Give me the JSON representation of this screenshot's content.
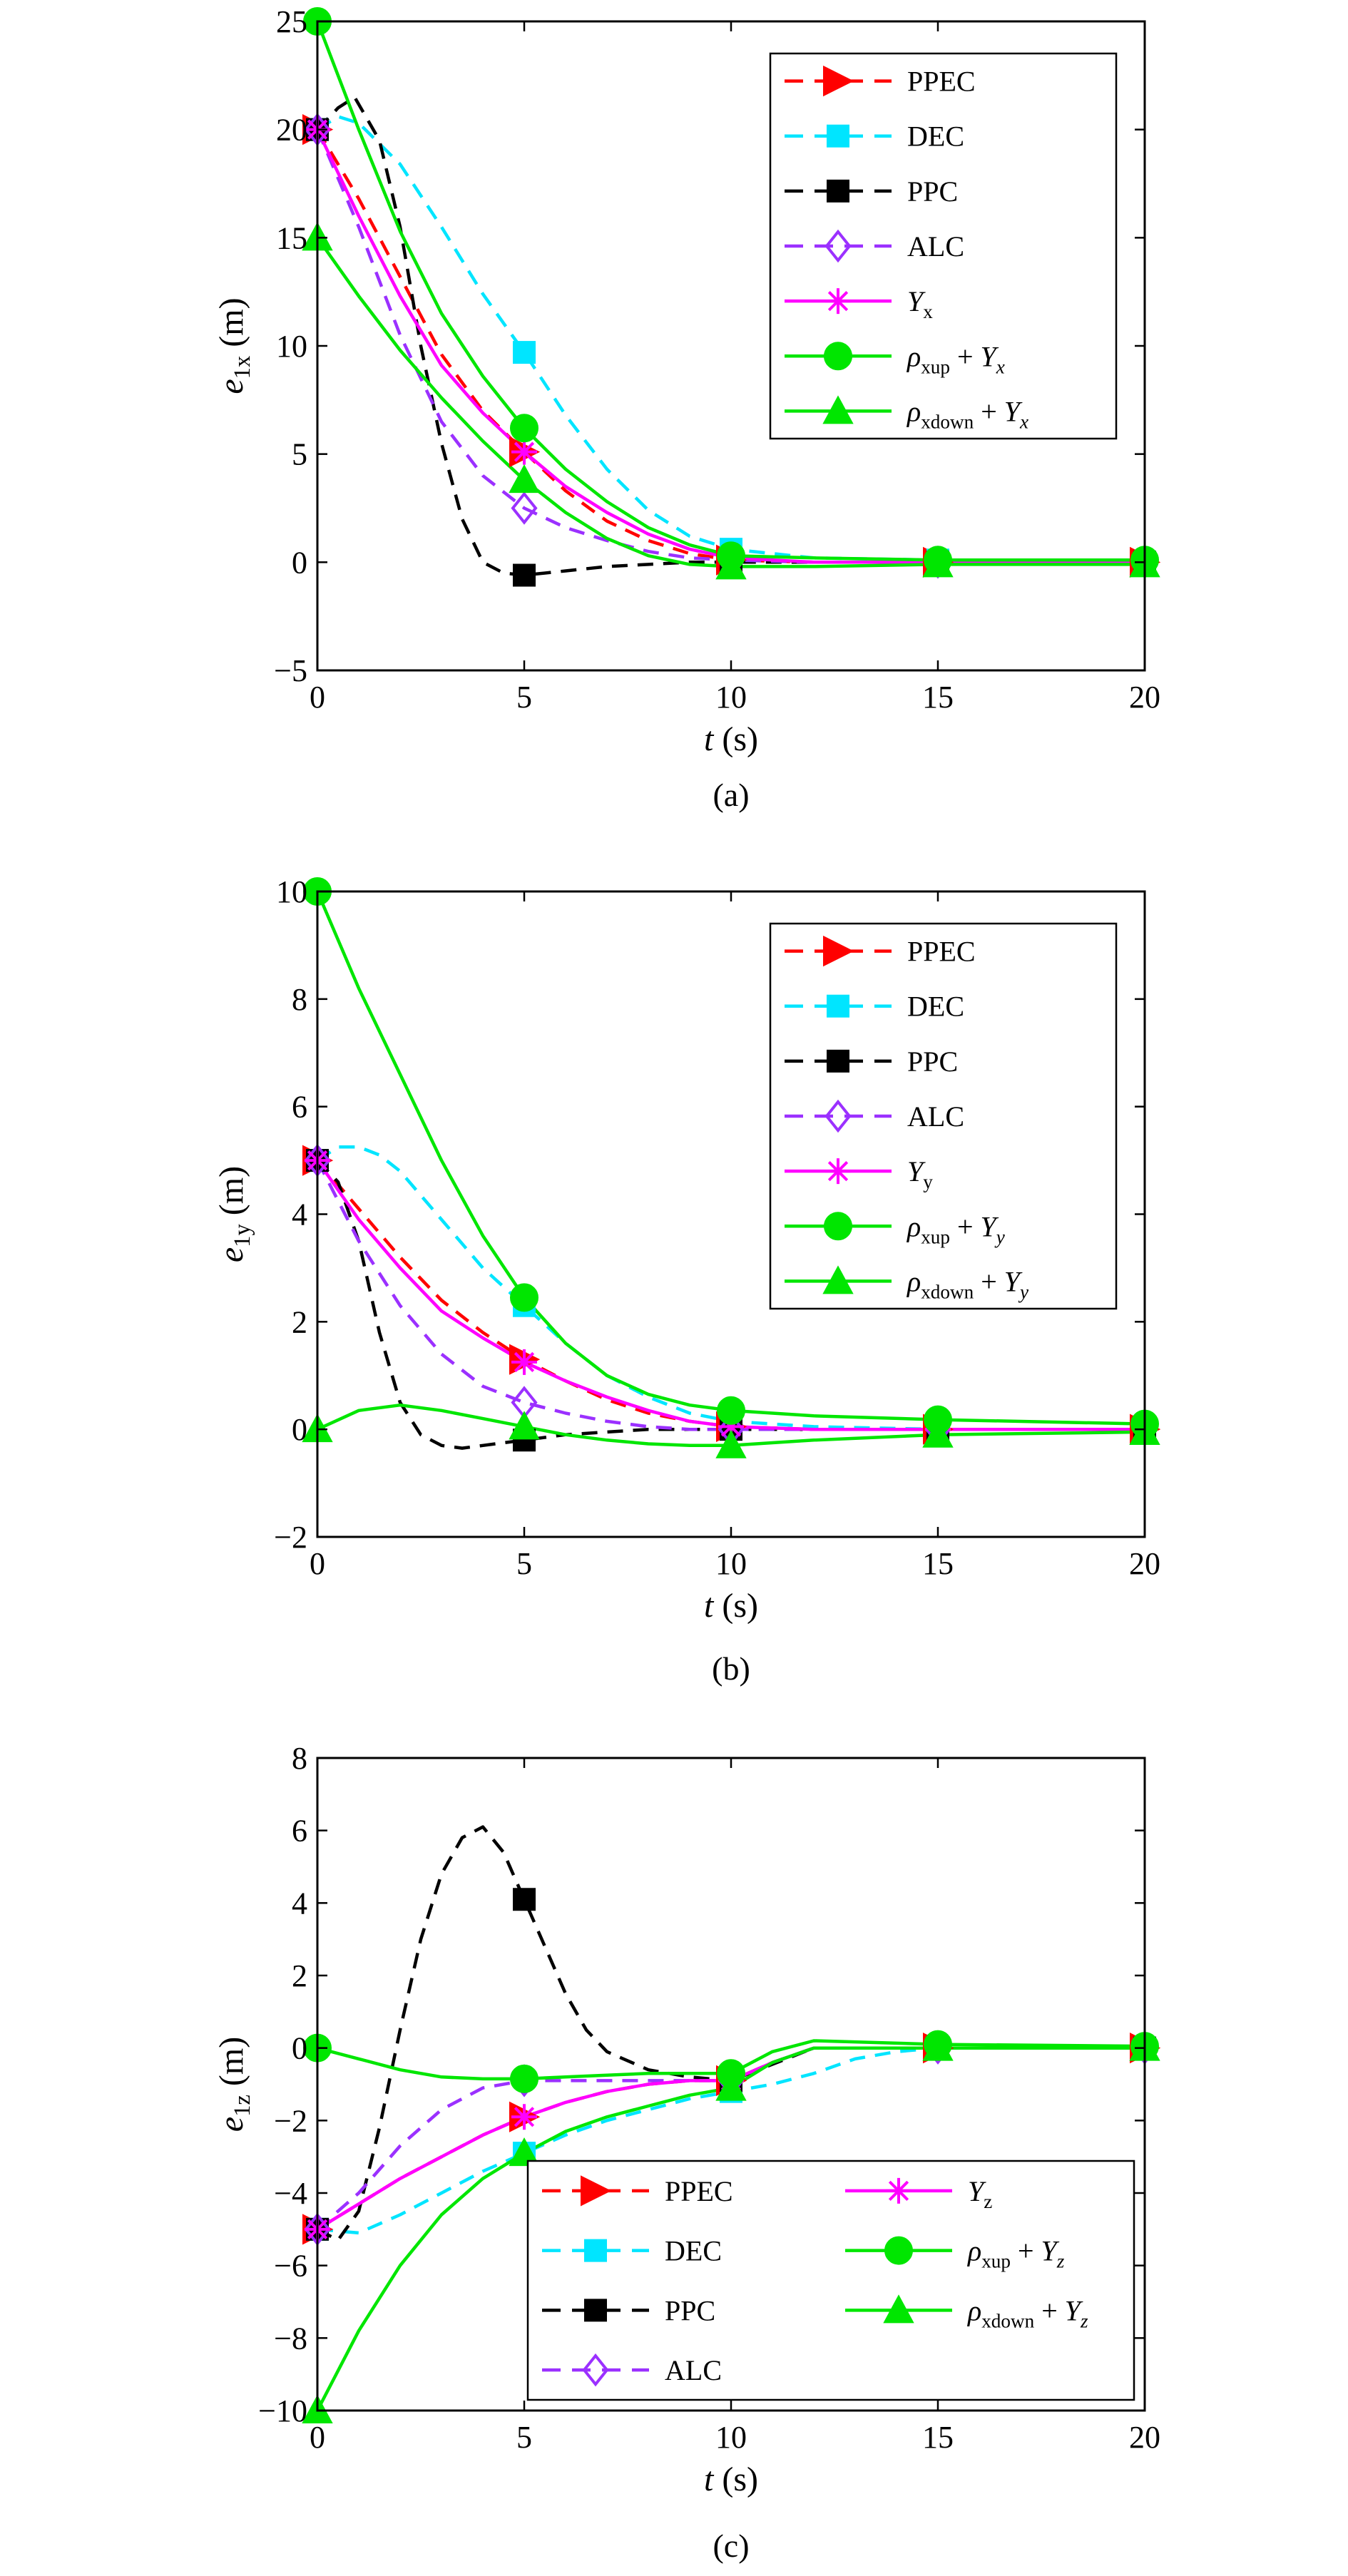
{
  "chart_data": [
    {
      "type": "line",
      "caption": "(a)",
      "xlabel": "t (s)",
      "ylabel": "e1x (m)",
      "ylabel_main": "e",
      "ylabel_sub": "1x",
      "ylabel_unit": " (m)",
      "xlim": [
        0,
        20
      ],
      "ylim": [
        -5,
        25
      ],
      "xticks": [
        0,
        5,
        10,
        15,
        20
      ],
      "yticks": [
        -5,
        0,
        5,
        10,
        15,
        20,
        25
      ],
      "grid": false,
      "legend_position": "top-right",
      "series": [
        {
          "name": "PPEC",
          "color": "#ff0000",
          "dash": "dashed",
          "marker": "triangle-right",
          "x": [
            0,
            1,
            2,
            3,
            4,
            5,
            6,
            7,
            8,
            9,
            10,
            12,
            15,
            20
          ],
          "y": [
            20,
            16.8,
            13.2,
            9.6,
            7,
            5.1,
            3.3,
            1.9,
            1,
            0.4,
            0.1,
            0,
            0,
            0
          ]
        },
        {
          "name": "DEC",
          "color": "#00e5ff",
          "dash": "dashed",
          "marker": "square",
          "x": [
            0,
            0.5,
            1,
            2,
            3,
            4,
            5,
            6,
            7,
            8,
            9,
            10,
            12,
            15,
            20
          ],
          "y": [
            20,
            20.6,
            20.3,
            18.4,
            15.5,
            12.4,
            9.7,
            6.8,
            4.3,
            2.4,
            1.2,
            0.6,
            0.2,
            0.1,
            0
          ]
        },
        {
          "name": "PPC",
          "color": "#000000",
          "dash": "dashed",
          "marker": "square",
          "x": [
            0,
            0.5,
            0.9,
            1.5,
            2,
            2.5,
            3,
            3.5,
            4,
            4.5,
            5,
            6,
            7,
            8,
            9,
            10,
            15,
            20
          ],
          "y": [
            20,
            21,
            21.5,
            19.5,
            15.5,
            10,
            5.5,
            2,
            0,
            -0.5,
            -0.6,
            -0.4,
            -0.2,
            -0.1,
            0,
            0,
            0,
            0
          ]
        },
        {
          "name": "ALC",
          "color": "#9b30ff",
          "dash": "dashed",
          "marker": "diamond",
          "x": [
            0,
            1,
            2,
            3,
            4,
            5,
            6,
            7,
            8,
            9,
            10,
            12,
            15,
            20
          ],
          "y": [
            20,
            15.5,
            10.5,
            6.5,
            4,
            2.5,
            1.6,
            1,
            0.5,
            0.2,
            0.1,
            0,
            0,
            0
          ]
        },
        {
          "name": "Yx",
          "label_main": "Y",
          "label_sub": "x",
          "color": "#ff00ff",
          "dash": "solid",
          "marker": "asterisk",
          "x": [
            0,
            1,
            2,
            3,
            4,
            5,
            6,
            7,
            8,
            9,
            10,
            12,
            15,
            20
          ],
          "y": [
            20,
            16,
            12.3,
            9.1,
            6.9,
            5.1,
            3.5,
            2.3,
            1.3,
            0.6,
            0.2,
            0,
            0,
            0
          ]
        },
        {
          "name": "ρxup + Yx",
          "label_main": "ρ",
          "label_sub": "xup",
          "label_tail": " + Y",
          "label_tail_sub": "x",
          "color": "#00e600",
          "dash": "solid",
          "marker": "circle",
          "x": [
            0,
            1,
            2,
            3,
            4,
            5,
            6,
            7,
            8,
            9,
            10,
            12,
            15,
            20
          ],
          "y": [
            25,
            20,
            15.3,
            11.5,
            8.6,
            6.2,
            4.3,
            2.8,
            1.6,
            0.8,
            0.3,
            0.2,
            0.1,
            0.1
          ]
        },
        {
          "name": "ρxdown + Yx",
          "label_main": "ρ",
          "label_sub": "xdown",
          "label_tail": " + Y",
          "label_tail_sub": "x",
          "color": "#00e600",
          "dash": "solid",
          "marker": "triangle-up",
          "x": [
            0,
            1,
            2,
            3,
            4,
            5,
            6,
            7,
            8,
            9,
            10,
            12,
            15,
            20
          ],
          "y": [
            15,
            12.3,
            9.8,
            7.6,
            5.6,
            3.8,
            2.3,
            1.1,
            0.3,
            -0.1,
            -0.2,
            -0.2,
            -0.1,
            -0.1
          ]
        }
      ],
      "markers_at_x": [
        0,
        5,
        10,
        15,
        20
      ]
    },
    {
      "type": "line",
      "caption": "(b)",
      "xlabel": "t (s)",
      "ylabel": "e1y (m)",
      "ylabel_main": "e",
      "ylabel_sub": "1y",
      "ylabel_unit": " (m)",
      "xlim": [
        0,
        20
      ],
      "ylim": [
        -2,
        10
      ],
      "xticks": [
        0,
        5,
        10,
        15,
        20
      ],
      "yticks": [
        -2,
        0,
        2,
        4,
        6,
        8,
        10
      ],
      "grid": false,
      "legend_position": "top-right",
      "series": [
        {
          "name": "PPEC",
          "color": "#ff0000",
          "dash": "dashed",
          "marker": "triangle-right",
          "x": [
            0,
            1,
            2,
            3,
            4,
            5,
            6,
            7,
            8,
            9,
            10,
            12,
            15,
            20
          ],
          "y": [
            5,
            4.1,
            3.2,
            2.4,
            1.8,
            1.3,
            0.9,
            0.55,
            0.3,
            0.15,
            0.05,
            0,
            0,
            0
          ]
        },
        {
          "name": "DEC",
          "color": "#00e5ff",
          "dash": "dashed",
          "marker": "square",
          "x": [
            0,
            0.5,
            1,
            1.5,
            2,
            3,
            4,
            5,
            6,
            7,
            8,
            9,
            10,
            12,
            15,
            20
          ],
          "y": [
            5,
            5.25,
            5.25,
            5.1,
            4.8,
            3.9,
            3.0,
            2.3,
            1.6,
            1.0,
            0.6,
            0.3,
            0.15,
            0.05,
            0,
            0
          ]
        },
        {
          "name": "PPC",
          "color": "#000000",
          "dash": "dashed",
          "marker": "square",
          "x": [
            0,
            0.5,
            1,
            1.5,
            2,
            2.5,
            3,
            3.5,
            4,
            5,
            6,
            7,
            8,
            10,
            15,
            20
          ],
          "y": [
            5,
            4.6,
            3.5,
            1.8,
            0.5,
            -0.1,
            -0.3,
            -0.35,
            -0.3,
            -0.2,
            -0.1,
            -0.05,
            0,
            0,
            0,
            0
          ]
        },
        {
          "name": "ALC",
          "color": "#9b30ff",
          "dash": "dashed",
          "marker": "diamond",
          "x": [
            0,
            1,
            2,
            3,
            4,
            5,
            6,
            7,
            8,
            9,
            10,
            12,
            15,
            20
          ],
          "y": [
            5,
            3.5,
            2.3,
            1.4,
            0.8,
            0.5,
            0.3,
            0.15,
            0.05,
            0,
            0,
            0,
            0,
            0
          ]
        },
        {
          "name": "Yy",
          "label_main": "Y",
          "label_sub": "y",
          "color": "#ff00ff",
          "dash": "solid",
          "marker": "asterisk",
          "x": [
            0,
            1,
            2,
            3,
            4,
            5,
            6,
            7,
            8,
            9,
            10,
            12,
            15,
            20
          ],
          "y": [
            5,
            3.9,
            3.0,
            2.2,
            1.7,
            1.25,
            0.9,
            0.6,
            0.35,
            0.15,
            0.05,
            0,
            0,
            0
          ]
        },
        {
          "name": "ρxup + Yy",
          "label_main": "ρ",
          "label_sub": "xup",
          "label_tail": " + Y",
          "label_tail_sub": "y",
          "color": "#00e600",
          "dash": "solid",
          "marker": "circle",
          "x": [
            0,
            1,
            2,
            3,
            4,
            5,
            6,
            7,
            8,
            9,
            10,
            12,
            15,
            20
          ],
          "y": [
            10,
            8.2,
            6.6,
            5.0,
            3.6,
            2.45,
            1.6,
            1.0,
            0.65,
            0.45,
            0.35,
            0.25,
            0.18,
            0.1
          ]
        },
        {
          "name": "ρxdown + Yy",
          "label_main": "ρ",
          "label_sub": "xdown",
          "label_tail": " + Y",
          "label_tail_sub": "y",
          "color": "#00e600",
          "dash": "solid",
          "marker": "triangle-up",
          "x": [
            0,
            1,
            2,
            3,
            4,
            5,
            6,
            7,
            8,
            9,
            10,
            12,
            15,
            20
          ],
          "y": [
            0,
            0.35,
            0.45,
            0.35,
            0.2,
            0.05,
            -0.1,
            -0.2,
            -0.27,
            -0.3,
            -0.3,
            -0.2,
            -0.1,
            -0.05
          ]
        }
      ],
      "markers_at_x": [
        0,
        5,
        10,
        15,
        20
      ]
    },
    {
      "type": "line",
      "caption": "(c)",
      "xlabel": "t (s)",
      "ylabel": "e1z (m)",
      "ylabel_main": "e",
      "ylabel_sub": "1z",
      "ylabel_unit": " (m)",
      "xlim": [
        0,
        20
      ],
      "ylim": [
        -10,
        8
      ],
      "xticks": [
        0,
        5,
        10,
        15,
        20
      ],
      "yticks": [
        -10,
        -8,
        -6,
        -4,
        -2,
        0,
        2,
        4,
        6,
        8
      ],
      "grid": false,
      "legend_position": "bottom-right",
      "series": [
        {
          "name": "PPEC",
          "color": "#ff0000",
          "dash": "dashed",
          "marker": "triangle-right",
          "x": [
            0,
            1,
            2,
            3,
            4,
            5,
            6,
            7,
            8,
            9,
            10,
            11,
            12,
            15,
            20
          ],
          "y": [
            -5,
            -4.3,
            -3.6,
            -3,
            -2.4,
            -1.9,
            -1.5,
            -1.2,
            -1,
            -0.9,
            -0.9,
            -0.4,
            0,
            0,
            0
          ]
        },
        {
          "name": "DEC",
          "color": "#00e5ff",
          "dash": "dashed",
          "marker": "square",
          "x": [
            0,
            1,
            2,
            3,
            4,
            5,
            6,
            7,
            8,
            9,
            10,
            11,
            12,
            13,
            14,
            15,
            20
          ],
          "y": [
            -5,
            -5.1,
            -4.6,
            -4,
            -3.4,
            -2.9,
            -2.4,
            -2,
            -1.7,
            -1.4,
            -1.2,
            -1,
            -0.7,
            -0.3,
            -0.1,
            0,
            0
          ]
        },
        {
          "name": "PPC",
          "color": "#000000",
          "dash": "dashed",
          "marker": "square",
          "x": [
            0,
            0.5,
            1,
            1.5,
            2,
            2.5,
            3,
            3.5,
            4,
            4.5,
            5,
            5.5,
            6,
            6.5,
            7,
            8,
            9,
            10,
            12,
            15,
            20
          ],
          "y": [
            -5,
            -5.3,
            -4.5,
            -2.2,
            0.5,
            3,
            4.8,
            5.8,
            6.1,
            5.4,
            4.1,
            2.8,
            1.5,
            0.5,
            -0.1,
            -0.6,
            -0.8,
            -0.9,
            0,
            0,
            0
          ]
        },
        {
          "name": "ALC",
          "color": "#9b30ff",
          "dash": "dashed",
          "marker": "diamond",
          "x": [
            0,
            1,
            2,
            3,
            4,
            5,
            6,
            7,
            8,
            9,
            10,
            11,
            12,
            15,
            20
          ],
          "y": [
            -5,
            -4,
            -2.7,
            -1.7,
            -1.1,
            -0.9,
            -0.9,
            -0.9,
            -0.9,
            -0.9,
            -0.9,
            -0.4,
            0,
            0,
            0
          ]
        },
        {
          "name": "Yz",
          "label_main": "Y",
          "label_sub": "z",
          "color": "#ff00ff",
          "dash": "solid",
          "marker": "asterisk",
          "x": [
            0,
            1,
            2,
            3,
            4,
            5,
            6,
            7,
            8,
            9,
            10,
            11,
            12,
            15,
            20
          ],
          "y": [
            -5,
            -4.3,
            -3.6,
            -3,
            -2.4,
            -1.9,
            -1.5,
            -1.2,
            -1,
            -0.9,
            -0.9,
            -0.4,
            0,
            0,
            0
          ]
        },
        {
          "name": "ρxup + Yz",
          "label_main": "ρ",
          "label_sub": "xup",
          "label_tail": " + Y",
          "label_tail_sub": "z",
          "color": "#00e600",
          "dash": "solid",
          "marker": "circle",
          "x": [
            0,
            1,
            2,
            3,
            4,
            5,
            6,
            7,
            8,
            9,
            10,
            11,
            12,
            15,
            20
          ],
          "y": [
            0,
            -0.3,
            -0.6,
            -0.8,
            -0.85,
            -0.85,
            -0.8,
            -0.75,
            -0.7,
            -0.7,
            -0.7,
            -0.1,
            0.2,
            0.1,
            0.05
          ]
        },
        {
          "name": "ρxdown + Yz",
          "label_main": "ρ",
          "label_sub": "xdown",
          "label_tail": " + Y",
          "label_tail_sub": "z",
          "color": "#00e600",
          "dash": "solid",
          "marker": "triangle-up",
          "x": [
            0,
            1,
            2,
            3,
            4,
            5,
            6,
            7,
            8,
            9,
            10,
            11,
            12,
            15,
            20
          ],
          "y": [
            -10,
            -7.8,
            -6,
            -4.6,
            -3.6,
            -2.9,
            -2.3,
            -1.9,
            -1.6,
            -1.3,
            -1.1,
            -0.4,
            0,
            0,
            0
          ]
        }
      ],
      "markers_at_x": [
        0,
        5,
        10,
        15,
        20
      ]
    }
  ]
}
